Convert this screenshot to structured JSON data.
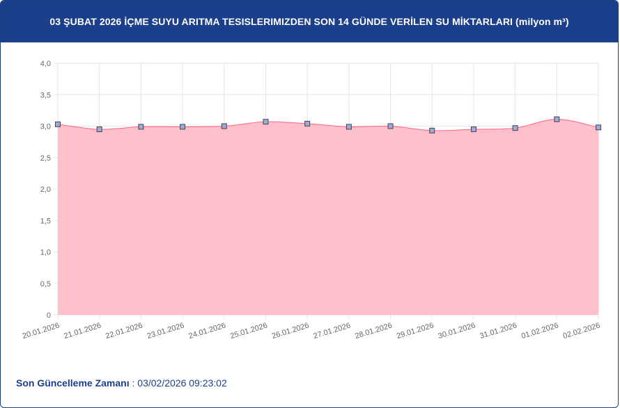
{
  "header": {
    "title": "03 ŞUBAT 2026 İÇME SUYU ARITMA TESISLERIMIZDEN SON 14 GÜNDE VERİLEN SU MİKTARLARI (milyon m³)"
  },
  "footer": {
    "label": "Son Güncelleme Zamanı",
    "separator": " : ",
    "value": "03/02/2026 09:23:02"
  },
  "colors": {
    "header_bg": "#1b3f8a",
    "area_fill": "#ffc0cb",
    "line": "#ff6384",
    "marker_fill": "#9fa8da"
  },
  "chart_data": {
    "type": "area",
    "title": "03 ŞUBAT 2026 İÇME SUYU ARITMA TESISLERIMIZDEN SON 14 GÜNDE VERİLEN SU MİKTARLARI (milyon m³)",
    "xlabel": "",
    "ylabel": "",
    "categories": [
      "20.01.2026",
      "21.01.2026",
      "22.01.2026",
      "23.01.2026",
      "24.01.2026",
      "25.01.2026",
      "26.01.2026",
      "27.01.2026",
      "28.01.2026",
      "29.01.2026",
      "30.01.2026",
      "31.01.2026",
      "01.02.2026",
      "02.02.2026"
    ],
    "values": [
      3.03,
      2.95,
      2.99,
      2.99,
      3.0,
      3.07,
      3.04,
      2.99,
      3.0,
      2.93,
      2.95,
      2.97,
      3.11,
      2.98
    ],
    "ylim": [
      0,
      4
    ],
    "yticks": [
      "0",
      "0,5",
      "1,0",
      "1,5",
      "2,0",
      "2,5",
      "3,0",
      "3,5",
      "4,0"
    ],
    "ytick_values": [
      0,
      0.5,
      1,
      1.5,
      2,
      2.5,
      3,
      3.5,
      4
    ],
    "grid": true,
    "legend": "none"
  }
}
